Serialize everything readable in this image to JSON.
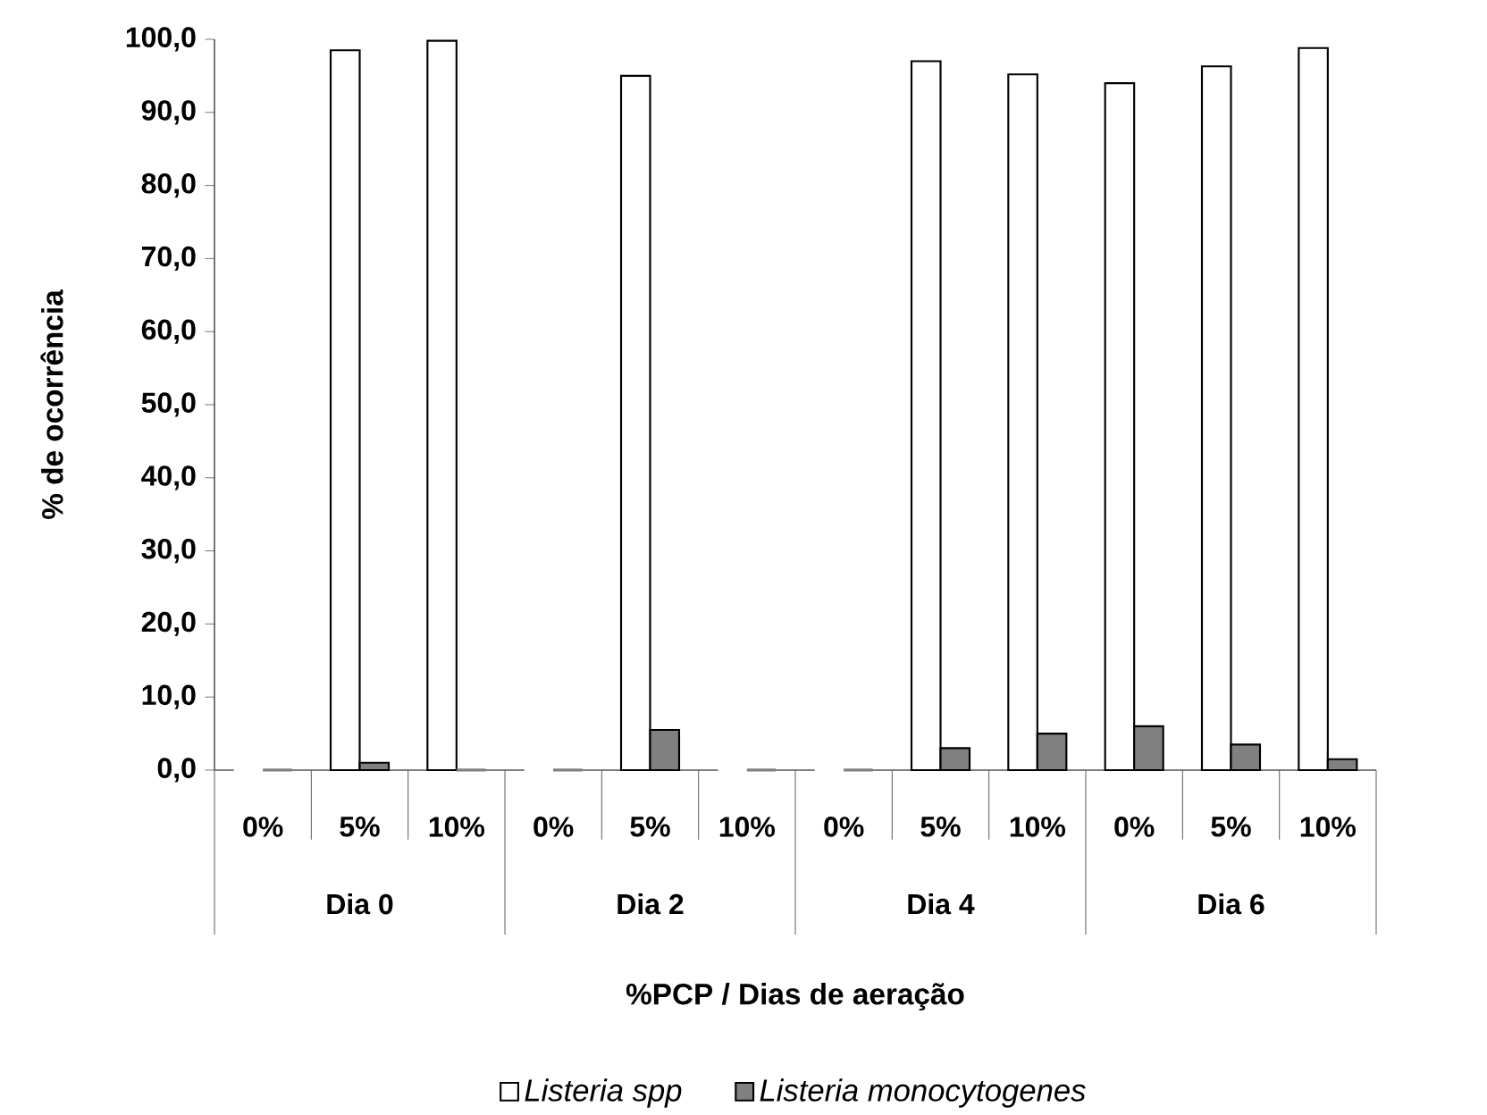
{
  "chart_data": {
    "type": "bar",
    "xlabel": "%PCP / Dias de aeração",
    "ylabel": "% de ocorrência",
    "categories": [
      "0%",
      "5%",
      "10%",
      "0%",
      "5%",
      "10%",
      "0%",
      "5%",
      "10%",
      "0%",
      "5%",
      "10%"
    ],
    "annotations": [
      "Dia 0",
      "Dia 2",
      "Dia 4",
      "Dia 6"
    ],
    "series": [
      {
        "name": "Listeria spp",
        "color": "#ffffff",
        "values": [
          0,
          98.5,
          99.8,
          0,
          95,
          0,
          0,
          97,
          95.2,
          94,
          96.3,
          98.8
        ]
      },
      {
        "name": "Listeria monocytogenes",
        "color": "#808080",
        "values": [
          0,
          1,
          0,
          0,
          5.5,
          0,
          0,
          3,
          5,
          6,
          3.5,
          1.5
        ]
      }
    ],
    "ylim": [
      0,
      100
    ],
    "yticks": [
      {
        "value": 0,
        "label": "0,0"
      },
      {
        "value": 10,
        "label": "10,0"
      },
      {
        "value": 20,
        "label": "20,0"
      },
      {
        "value": 30,
        "label": "30,0"
      },
      {
        "value": 40,
        "label": "40,0"
      },
      {
        "value": 50,
        "label": "50,0"
      },
      {
        "value": 60,
        "label": "60,0"
      },
      {
        "value": 70,
        "label": "70,0"
      },
      {
        "value": 80,
        "label": "80,0"
      },
      {
        "value": 90,
        "label": "90,0"
      },
      {
        "value": 100,
        "label": "100,0"
      }
    ],
    "legend": "bottom"
  }
}
